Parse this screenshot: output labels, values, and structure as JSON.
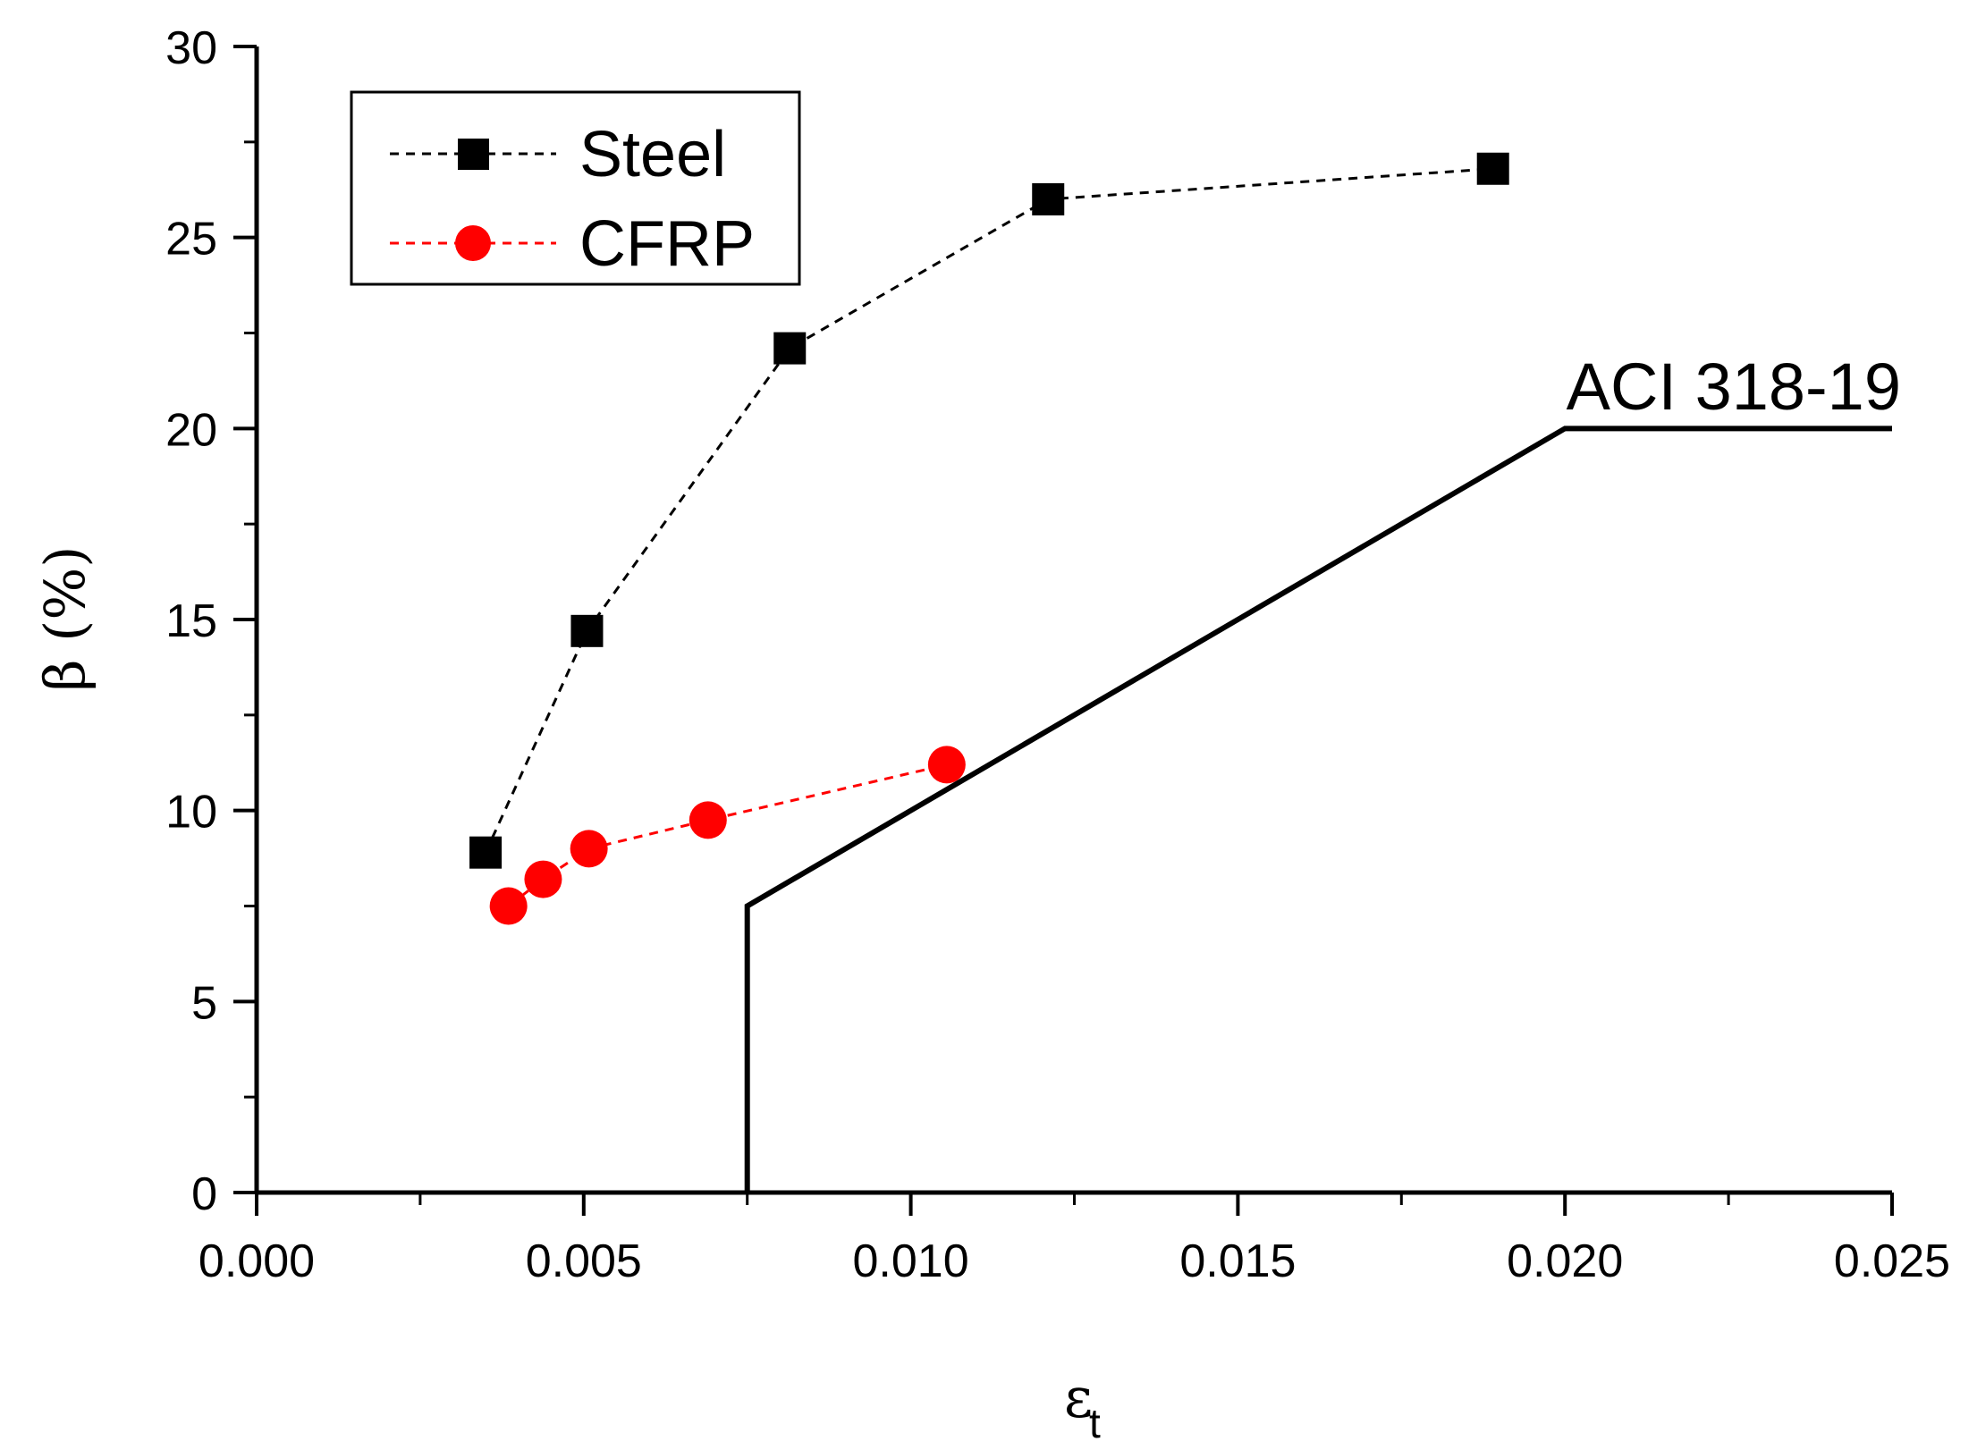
{
  "chart_data": {
    "type": "line",
    "title": "",
    "xlabel": "ε",
    "xlabel_subscript": "t",
    "ylabel": "β (%)",
    "xlim": [
      0,
      0.025
    ],
    "ylim": [
      0,
      30
    ],
    "xticks": [
      0,
      0.005,
      0.01,
      0.015,
      0.02,
      0.025
    ],
    "xtick_labels": [
      "0.000",
      "0.005",
      "0.010",
      "0.015",
      "0.020",
      "0.025"
    ],
    "yticks": [
      0,
      5,
      10,
      15,
      20,
      25,
      30
    ],
    "ytick_labels": [
      "0",
      "5",
      "10",
      "15",
      "20",
      "25",
      "30"
    ],
    "grid": false,
    "legend_position": "top-left",
    "series": [
      {
        "name": "Steel",
        "color": "#000000",
        "marker": "square",
        "line_style": "dashed",
        "x": [
          0.0035,
          0.00505,
          0.00815,
          0.0121,
          0.0189
        ],
        "y": [
          8.9,
          14.7,
          22.1,
          26.0,
          26.8
        ]
      },
      {
        "name": "CFRP",
        "color": "#ff0000",
        "marker": "circle",
        "line_style": "dashed",
        "x": [
          0.00385,
          0.00438,
          0.00508,
          0.0069,
          0.01055
        ],
        "y": [
          7.5,
          8.2,
          9.0,
          9.75,
          11.2
        ]
      }
    ],
    "reference_line": {
      "name": "ACI 318-19",
      "color": "#000000",
      "line_style": "solid",
      "x": [
        0.0075,
        0.0075,
        0.02,
        0.025
      ],
      "y": [
        0,
        7.5,
        20,
        20
      ]
    }
  }
}
